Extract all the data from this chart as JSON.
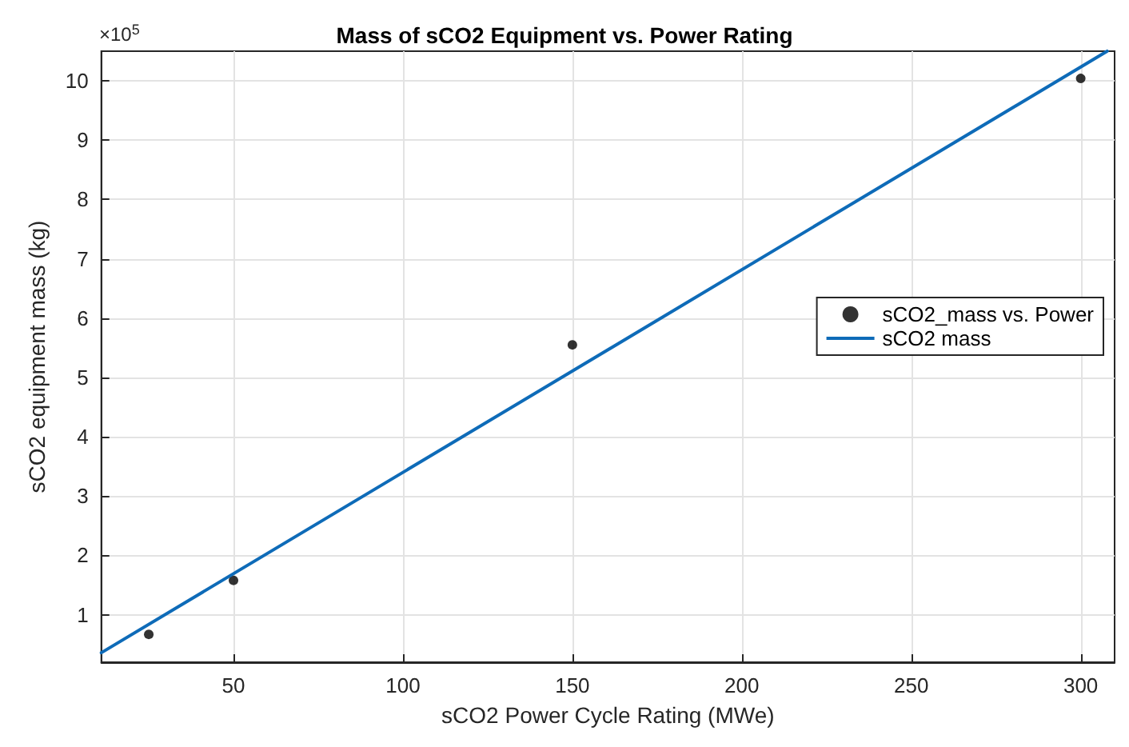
{
  "chart_data": {
    "type": "scatter",
    "title": "Mass of sCO2 Equipment vs. Power Rating",
    "xlabel": "sCO2 Power Cycle Rating (MWe)",
    "ylabel": "sCO2 equipment mass (kg)",
    "annotations": [
      "×10$^{5}$"
    ],
    "xlim": [
      11,
      310
    ],
    "xticks": [
      50,
      100,
      150,
      200,
      250,
      300
    ],
    "ylim": [
      0.2,
      10.5
    ],
    "yticks": [
      1,
      2,
      3,
      4,
      5,
      6,
      7,
      8,
      9,
      10
    ],
    "series": [
      {
        "name": "sCO2_mass vs. Power",
        "marker": "circle",
        "color": "#000000",
        "x": [
          25,
          50,
          150,
          300
        ],
        "values": [
          0.67,
          1.58,
          5.55,
          10.04
        ]
      },
      {
        "name": "sCO2 mass",
        "type": "line",
        "marker": "none",
        "line_style": "solid",
        "color": "#0e6bb8",
        "x": [
          11,
          307.8
        ],
        "values": [
          0.36,
          10.5
        ]
      }
    ],
    "grid": true,
    "legend": "right"
  }
}
